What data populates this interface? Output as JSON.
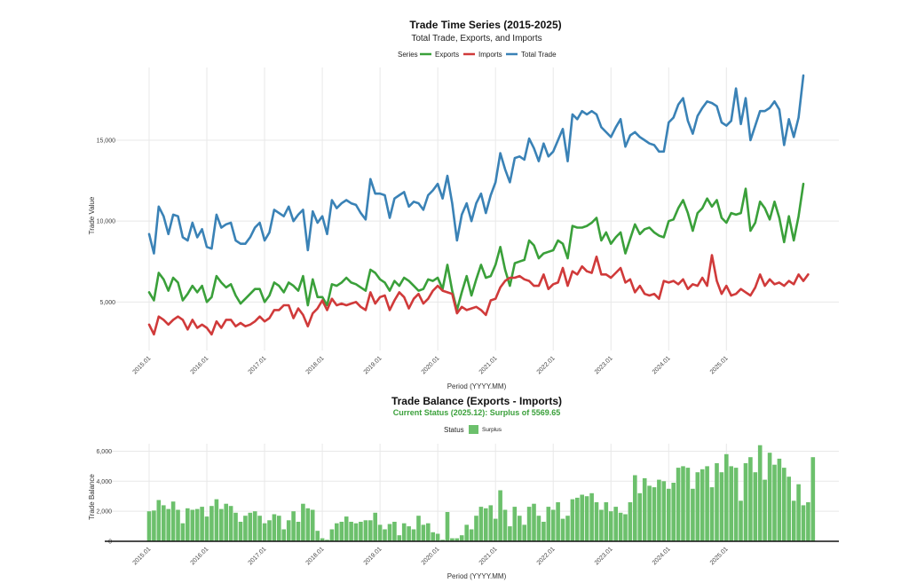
{
  "colors": {
    "exports": "#3aa03a",
    "imports": "#d03a3a",
    "total": "#3a82b6",
    "surplus": "#6cc06c",
    "grid": "#e8e8e8"
  },
  "chart_data": [
    {
      "type": "line",
      "title": "Trade Time Series (2015-2025)",
      "subtitle": "Total Trade, Exports, and Imports",
      "xlabel": "Period (YYYY.MM)",
      "ylabel": "Trade Value",
      "legend_title": "Series",
      "legend_position": "top",
      "grid": true,
      "x_ticks": [
        "2015.01",
        "2016.01",
        "2017.01",
        "2018.01",
        "2019.01",
        "2020.01",
        "2021.01",
        "2022.01",
        "2023.01",
        "2024.01",
        "2025.01"
      ],
      "y_ticks": [
        5000,
        10000,
        15000
      ],
      "y_tick_labels": [
        "5,000",
        "10,000",
        "15,000"
      ],
      "ylim": [
        2000,
        19500
      ],
      "x_range_months": [
        0,
        131
      ],
      "series": [
        {
          "name": "Exports",
          "values": [
            5600,
            5100,
            6800,
            6400,
            5700,
            6500,
            6200,
            5100,
            5500,
            6000,
            5600,
            6000,
            5000,
            5300,
            6600,
            6200,
            5900,
            6100,
            5400,
            4900,
            5200,
            5500,
            5800,
            5800,
            5000,
            5400,
            6200,
            6000,
            5600,
            6200,
            6000,
            5700,
            6600,
            4800,
            6400,
            5300,
            5300,
            4800,
            6100,
            6000,
            6200,
            6500,
            6200,
            6100,
            5900,
            5700,
            7000,
            6800,
            6400,
            6200,
            5700,
            6300,
            6000,
            6500,
            6300,
            6000,
            5700,
            5800,
            6400,
            6300,
            6500,
            5800,
            7300,
            5700,
            4500,
            5600,
            6600,
            5400,
            6400,
            7300,
            6500,
            6600,
            7300,
            8400,
            7000,
            6000,
            7400,
            7500,
            7600,
            8800,
            8500,
            7700,
            8000,
            8100,
            8200,
            8800,
            8600,
            7700,
            9700,
            9600,
            9600,
            9700,
            9900,
            10200,
            8800,
            9300,
            8600,
            9000,
            9300,
            8000,
            8900,
            9800,
            9200,
            9500,
            9600,
            9300,
            9100,
            9000,
            10000,
            10100,
            10800,
            11300,
            10500,
            9400,
            10500,
            10800,
            11400,
            10900,
            11300,
            10200,
            9900,
            10500,
            10400,
            10500,
            12000,
            9400,
            9900,
            11200,
            10800,
            10100,
            11200,
            10200,
            8700,
            10300,
            8800,
            10300,
            12300
          ]
        },
        {
          "name": "Imports",
          "values": [
            3600,
            3000,
            4100,
            3900,
            3600,
            3900,
            4100,
            3900,
            3300,
            3900,
            3400,
            3600,
            3400,
            3000,
            3800,
            3400,
            3900,
            3900,
            3500,
            3700,
            3500,
            3600,
            3800,
            4100,
            3800,
            4000,
            4500,
            4500,
            4800,
            4800,
            4000,
            4600,
            4200,
            3500,
            4300,
            4600,
            5100,
            4500,
            5200,
            4800,
            4900,
            4800,
            4900,
            5000,
            4700,
            4500,
            5600,
            4900,
            5300,
            5400,
            4500,
            5100,
            5600,
            5300,
            4600,
            5200,
            5500,
            4900,
            5200,
            5700,
            6000,
            5700,
            5600,
            5500,
            4300,
            4700,
            4500,
            4600,
            4700,
            4500,
            4200,
            5100,
            5200,
            5900,
            6300,
            6500,
            6500,
            6600,
            6400,
            6300,
            6000,
            6000,
            6700,
            5800,
            6100,
            6200,
            7100,
            6000,
            6900,
            6700,
            7200,
            6900,
            6800,
            7800,
            6700,
            6700,
            6500,
            6800,
            7100,
            6200,
            6400,
            5600,
            6000,
            5500,
            5400,
            5500,
            5200,
            6300,
            6200,
            6300,
            6100,
            6400,
            5800,
            6100,
            6000,
            6500,
            6000,
            7900,
            6300,
            5500,
            6000,
            5400,
            5500,
            5800,
            5600,
            5400,
            5900,
            6700,
            6000,
            6400,
            6100,
            6200,
            6000,
            6300,
            6100,
            6700,
            6300,
            6700
          ]
        },
        {
          "name": "Total Trade",
          "values": [
            9200,
            8000,
            10900,
            10300,
            9200,
            10400,
            10300,
            9000,
            8800,
            9900,
            9000,
            9500,
            8400,
            8300,
            10400,
            9600,
            9800,
            9900,
            8800,
            8600,
            8600,
            9000,
            9600,
            9900,
            8800,
            9300,
            10700,
            10500,
            10300,
            10900,
            10000,
            10400,
            10700,
            8200,
            10600,
            9900,
            10300,
            9200,
            11300,
            10800,
            11100,
            11300,
            11100,
            11000,
            10500,
            10100,
            12600,
            11700,
            11700,
            11600,
            10200,
            11400,
            11600,
            11800,
            10900,
            11200,
            11100,
            10700,
            11600,
            11900,
            12300,
            11400,
            12800,
            11100,
            8800,
            10400,
            11100,
            10000,
            11100,
            11700,
            10500,
            11600,
            12400,
            14200,
            13200,
            12400,
            13900,
            14000,
            13800,
            15100,
            14500,
            13700,
            14800,
            14000,
            14300,
            15000,
            15700,
            13700,
            16600,
            16300,
            16800,
            16600,
            16800,
            16600,
            15800,
            15500,
            15200,
            15800,
            16300,
            14600,
            15300,
            15500,
            15200,
            15000,
            14800,
            14700,
            14300,
            14300,
            16100,
            16400,
            17200,
            17600,
            16200,
            15400,
            16500,
            17000,
            17400,
            17300,
            17100,
            16100,
            15900,
            16200,
            18200,
            16000,
            17600,
            15000,
            15900,
            16800,
            16800,
            17000,
            17400,
            16900,
            14700,
            16300,
            15200,
            16400,
            19000
          ]
        }
      ]
    },
    {
      "type": "bar",
      "title": "Trade Balance (Exports - Imports)",
      "status_line": "Current Status (2025.12): Surplus of 5569.65",
      "xlabel": "Period (YYYY.MM)",
      "ylabel": "Trade Balance",
      "legend_title": "Status",
      "legend_entries": [
        "Surplus"
      ],
      "grid": true,
      "x_ticks": [
        "2015.01",
        "2016.01",
        "2017.01",
        "2018.01",
        "2019.01",
        "2020.01",
        "2021.01",
        "2022.01",
        "2023.01",
        "2024.01",
        "2025.01"
      ],
      "y_ticks": [
        0,
        2000,
        4000,
        6000
      ],
      "y_tick_labels": [
        "0",
        "2,000",
        "4,000",
        "6,000"
      ],
      "ylim": [
        0,
        6500
      ],
      "values": [
        2000,
        2050,
        2750,
        2400,
        2150,
        2650,
        2100,
        1200,
        2200,
        2100,
        2150,
        2300,
        1650,
        2350,
        2800,
        2150,
        2500,
        2350,
        1900,
        1300,
        1700,
        1900,
        2000,
        1700,
        1200,
        1400,
        1800,
        1700,
        800,
        1400,
        2000,
        1300,
        2500,
        2200,
        2100,
        700,
        200,
        100,
        800,
        1200,
        1300,
        1650,
        1300,
        1200,
        1300,
        1400,
        1400,
        1900,
        1100,
        800,
        1150,
        1300,
        400,
        1200,
        1000,
        800,
        1700,
        1100,
        1200,
        600,
        500,
        100,
        1950,
        200,
        200,
        400,
        1100,
        800,
        1700,
        2300,
        2200,
        2400,
        1500,
        3400,
        2100,
        1000,
        2300,
        1700,
        1100,
        2300,
        2500,
        1700,
        1300,
        2300,
        2100,
        2600,
        1500,
        1700,
        2800,
        2900,
        3100,
        3000,
        3200,
        2600,
        2100,
        2600,
        2000,
        2300,
        1900,
        1800,
        2600,
        4400,
        3200,
        4200,
        3700,
        3600,
        4100,
        4000,
        3500,
        3900,
        4900,
        5000,
        4900,
        3500,
        4600,
        4800,
        5000,
        3600,
        5200,
        4600,
        5800,
        5000,
        4900,
        2700,
        5200,
        5600,
        4600,
        6400,
        4100,
        5900,
        5100,
        5500,
        4900,
        4300,
        2700,
        3800,
        2400,
        2600,
        5600
      ]
    }
  ]
}
